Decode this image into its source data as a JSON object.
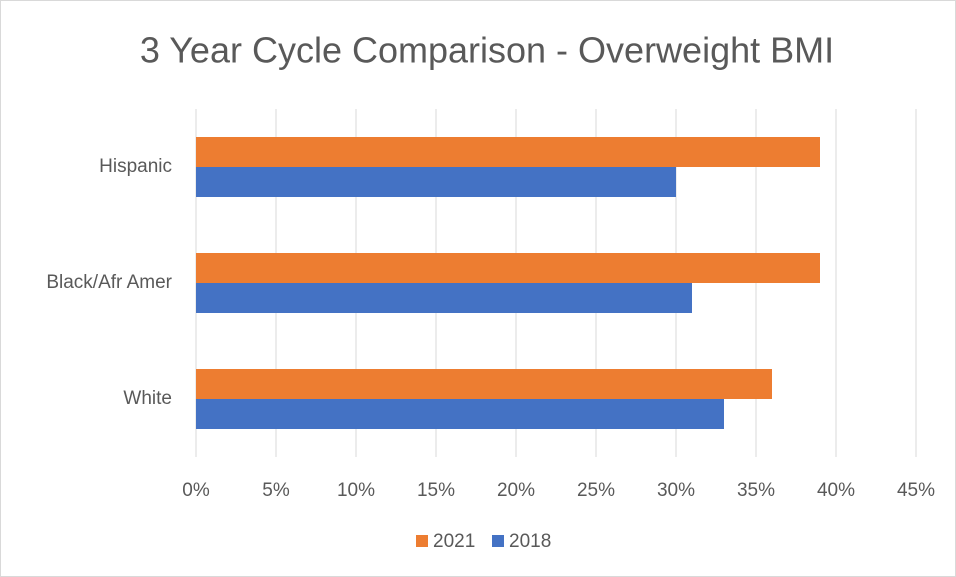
{
  "chart_data": {
    "type": "bar",
    "orientation": "horizontal",
    "title": "3 Year Cycle Comparison - Overweight BMI",
    "categories": [
      "Hispanic",
      "Black/Afr Amer",
      "White"
    ],
    "series": [
      {
        "name": "2021",
        "color": "#ed7d31",
        "values": [
          39,
          39,
          36
        ]
      },
      {
        "name": "2018",
        "color": "#4472c4",
        "values": [
          30,
          31,
          33
        ]
      }
    ],
    "xlim": [
      0,
      45
    ],
    "xticks": [
      {
        "value": 0,
        "label": "0%"
      },
      {
        "value": 5,
        "label": "5%"
      },
      {
        "value": 10,
        "label": "10%"
      },
      {
        "value": 15,
        "label": "15%"
      },
      {
        "value": 20,
        "label": "20%"
      },
      {
        "value": 25,
        "label": "25%"
      },
      {
        "value": 30,
        "label": "30%"
      },
      {
        "value": 35,
        "label": "35%"
      },
      {
        "value": 40,
        "label": "40%"
      },
      {
        "value": 45,
        "label": "45%"
      }
    ],
    "grid": true,
    "legend": "bottom"
  }
}
